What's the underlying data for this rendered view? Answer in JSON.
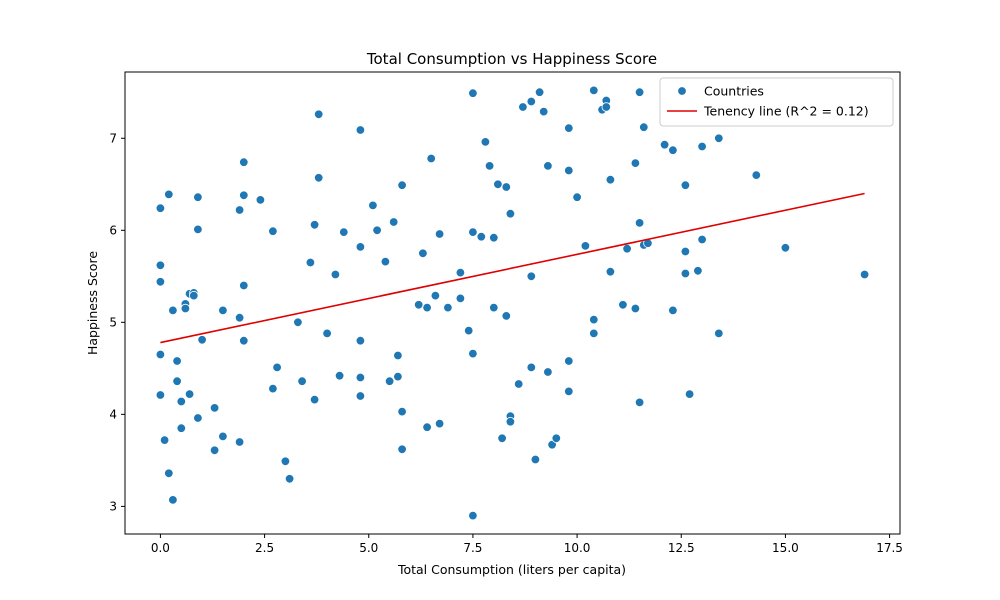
{
  "chart_data": {
    "type": "scatter",
    "title": "Total Consumption vs Happiness Score",
    "xlabel": "Total Consumption (liters per capita)",
    "ylabel": "Happiness Score",
    "xlim": [
      -0.85,
      17.75
    ],
    "ylim": [
      2.7,
      7.72
    ],
    "xticks": [
      0.0,
      2.5,
      5.0,
      7.5,
      10.0,
      12.5,
      15.0,
      17.5
    ],
    "xtick_labels": [
      "0.0",
      "2.5",
      "5.0",
      "7.5",
      "10.0",
      "12.5",
      "15.0",
      "17.5"
    ],
    "yticks": [
      3,
      4,
      5,
      6,
      7
    ],
    "ytick_labels": [
      "3",
      "4",
      "5",
      "6",
      "7"
    ],
    "grid": false,
    "legend_position": "top-right",
    "colors": {
      "points": "#1f77b4",
      "trend": "#e00000"
    },
    "series": [
      {
        "name": "Countries",
        "kind": "scatter",
        "points": [
          [
            0.0,
            6.24
          ],
          [
            0.0,
            5.62
          ],
          [
            0.0,
            5.44
          ],
          [
            0.0,
            4.65
          ],
          [
            0.0,
            4.21
          ],
          [
            0.1,
            3.72
          ],
          [
            0.2,
            6.39
          ],
          [
            0.2,
            3.36
          ],
          [
            0.3,
            5.13
          ],
          [
            0.3,
            3.07
          ],
          [
            0.4,
            4.58
          ],
          [
            0.4,
            4.36
          ],
          [
            0.5,
            4.14
          ],
          [
            0.5,
            3.85
          ],
          [
            0.6,
            5.2
          ],
          [
            0.6,
            5.15
          ],
          [
            0.7,
            5.31
          ],
          [
            0.7,
            4.22
          ],
          [
            0.8,
            5.32
          ],
          [
            0.8,
            5.29
          ],
          [
            0.9,
            6.36
          ],
          [
            0.9,
            6.01
          ],
          [
            0.9,
            3.96
          ],
          [
            1.0,
            4.81
          ],
          [
            1.3,
            4.07
          ],
          [
            1.3,
            3.61
          ],
          [
            1.5,
            5.13
          ],
          [
            1.5,
            3.76
          ],
          [
            1.9,
            6.22
          ],
          [
            1.9,
            5.05
          ],
          [
            1.9,
            3.7
          ],
          [
            2.0,
            6.74
          ],
          [
            2.0,
            6.38
          ],
          [
            2.0,
            5.4
          ],
          [
            2.0,
            4.8
          ],
          [
            2.4,
            6.33
          ],
          [
            2.7,
            5.99
          ],
          [
            2.7,
            4.28
          ],
          [
            2.8,
            4.51
          ],
          [
            3.0,
            3.49
          ],
          [
            3.1,
            3.3
          ],
          [
            3.3,
            5.0
          ],
          [
            3.4,
            4.36
          ],
          [
            3.6,
            5.65
          ],
          [
            3.7,
            6.06
          ],
          [
            3.7,
            4.16
          ],
          [
            3.8,
            7.26
          ],
          [
            3.8,
            6.57
          ],
          [
            4.0,
            4.88
          ],
          [
            4.2,
            5.52
          ],
          [
            4.3,
            4.42
          ],
          [
            4.4,
            5.98
          ],
          [
            4.8,
            7.09
          ],
          [
            4.8,
            5.82
          ],
          [
            4.8,
            4.8
          ],
          [
            4.8,
            4.4
          ],
          [
            4.8,
            4.2
          ],
          [
            5.1,
            6.27
          ],
          [
            5.2,
            6.0
          ],
          [
            5.4,
            5.66
          ],
          [
            5.5,
            4.36
          ],
          [
            5.6,
            6.09
          ],
          [
            5.7,
            4.64
          ],
          [
            5.7,
            4.41
          ],
          [
            5.8,
            6.49
          ],
          [
            5.8,
            4.03
          ],
          [
            5.8,
            3.62
          ],
          [
            6.2,
            5.19
          ],
          [
            6.3,
            5.75
          ],
          [
            6.4,
            5.16
          ],
          [
            6.4,
            3.86
          ],
          [
            6.5,
            6.78
          ],
          [
            6.6,
            5.29
          ],
          [
            6.7,
            5.96
          ],
          [
            6.7,
            3.9
          ],
          [
            6.9,
            5.16
          ],
          [
            7.2,
            5.54
          ],
          [
            7.2,
            5.26
          ],
          [
            7.4,
            4.91
          ],
          [
            7.5,
            7.49
          ],
          [
            7.5,
            5.98
          ],
          [
            7.5,
            4.66
          ],
          [
            7.5,
            2.9
          ],
          [
            7.7,
            5.93
          ],
          [
            7.8,
            6.96
          ],
          [
            7.9,
            6.7
          ],
          [
            8.0,
            5.92
          ],
          [
            8.0,
            5.16
          ],
          [
            8.1,
            6.5
          ],
          [
            8.2,
            3.74
          ],
          [
            8.3,
            6.47
          ],
          [
            8.3,
            5.07
          ],
          [
            8.4,
            6.18
          ],
          [
            8.4,
            3.98
          ],
          [
            8.4,
            3.92
          ],
          [
            8.6,
            4.33
          ],
          [
            8.7,
            7.34
          ],
          [
            8.9,
            7.4
          ],
          [
            8.9,
            5.5
          ],
          [
            8.9,
            4.51
          ],
          [
            9.0,
            3.51
          ],
          [
            9.1,
            7.5
          ],
          [
            9.2,
            7.29
          ],
          [
            9.3,
            6.7
          ],
          [
            9.3,
            4.46
          ],
          [
            9.4,
            3.67
          ],
          [
            9.5,
            3.74
          ],
          [
            9.8,
            7.11
          ],
          [
            9.8,
            6.65
          ],
          [
            9.8,
            4.58
          ],
          [
            9.8,
            4.25
          ],
          [
            10.0,
            6.36
          ],
          [
            10.2,
            5.83
          ],
          [
            10.4,
            7.52
          ],
          [
            10.4,
            5.03
          ],
          [
            10.4,
            4.88
          ],
          [
            10.6,
            7.31
          ],
          [
            10.7,
            7.41
          ],
          [
            10.7,
            7.34
          ],
          [
            10.8,
            6.55
          ],
          [
            10.8,
            5.55
          ],
          [
            11.1,
            5.19
          ],
          [
            11.2,
            5.8
          ],
          [
            11.4,
            6.73
          ],
          [
            11.4,
            5.15
          ],
          [
            11.5,
            7.5
          ],
          [
            11.5,
            6.08
          ],
          [
            11.5,
            4.13
          ],
          [
            11.6,
            7.12
          ],
          [
            11.6,
            5.84
          ],
          [
            11.7,
            5.86
          ],
          [
            12.1,
            6.93
          ],
          [
            12.3,
            6.87
          ],
          [
            12.3,
            5.13
          ],
          [
            12.6,
            6.49
          ],
          [
            12.6,
            5.77
          ],
          [
            12.6,
            5.53
          ],
          [
            12.7,
            4.22
          ],
          [
            12.9,
            5.56
          ],
          [
            13.0,
            6.91
          ],
          [
            13.0,
            5.9
          ],
          [
            13.4,
            7.0
          ],
          [
            13.4,
            4.88
          ],
          [
            14.3,
            6.6
          ],
          [
            15.0,
            5.81
          ],
          [
            16.9,
            5.52
          ]
        ]
      },
      {
        "name": "Tenency line (R^2 = 0.12)",
        "kind": "line",
        "x": [
          0.0,
          16.9
        ],
        "y": [
          4.78,
          6.4
        ]
      }
    ]
  }
}
